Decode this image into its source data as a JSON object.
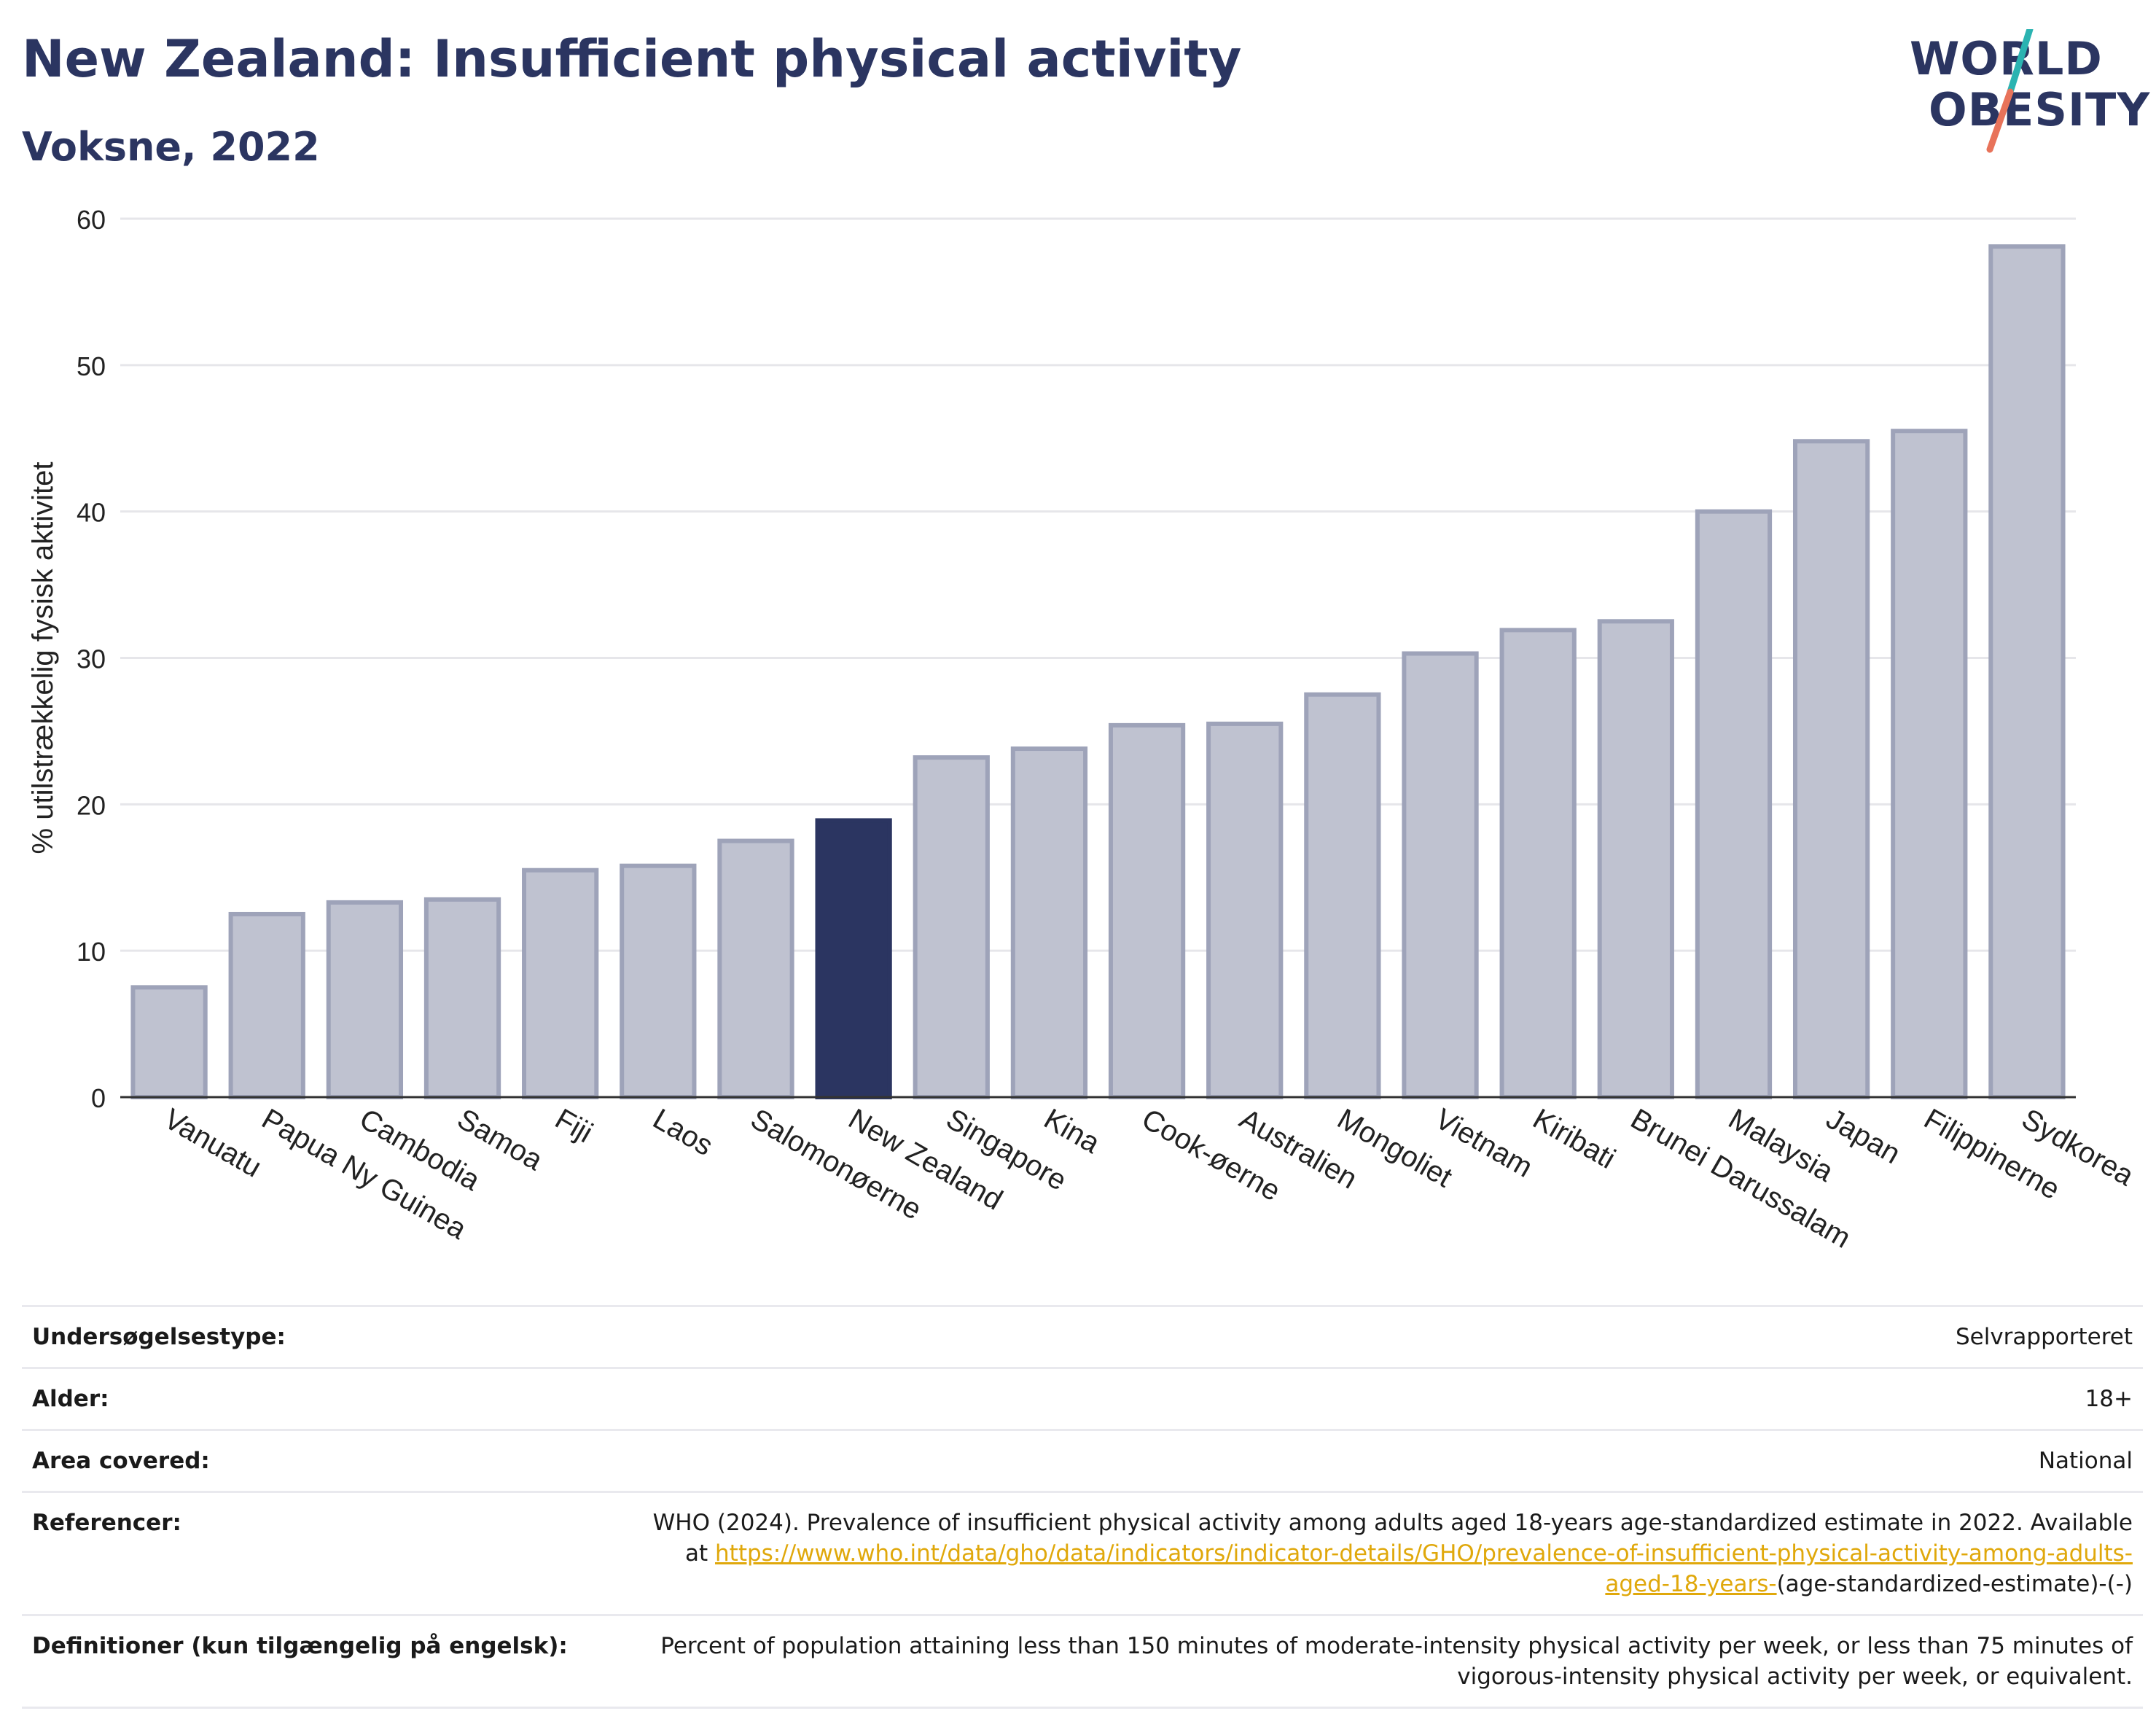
{
  "header": {
    "title": "New Zealand: Insufficient physical activity",
    "subtitle": "Voksne, 2022"
  },
  "logo": {
    "line1": "WORLD",
    "line2": "OBESITY",
    "slash_colors": [
      "#2bb3b1",
      "#e8735a"
    ]
  },
  "colors": {
    "bar": "#bfc2d0",
    "bar_stroke": "#9ea3b9",
    "highlight": "#2b3561",
    "grid": "#e6e6ea",
    "axis": "#333333"
  },
  "chart_data": {
    "type": "bar",
    "ylabel": "% utilstrækkelig fysisk aktivitet",
    "xlabel": "",
    "ylim": [
      0,
      60
    ],
    "yticks": [
      0,
      10,
      20,
      30,
      40,
      50,
      60
    ],
    "grid": true,
    "highlight": "New Zealand",
    "categories": [
      "Vanuatu",
      "Papua Ny Guinea",
      "Cambodia",
      "Samoa",
      "Fiji",
      "Laos",
      "Salomonøerne",
      "New Zealand",
      "Singapore",
      "Kina",
      "Cook-øerne",
      "Australien",
      "Mongoliet",
      "Vietnam",
      "Kiribati",
      "Brunei Darussalam",
      "Malaysia",
      "Japan",
      "Filippinerne",
      "Sydkorea"
    ],
    "values": [
      7.5,
      12.5,
      13.3,
      13.5,
      15.5,
      15.8,
      17.5,
      18.9,
      23.2,
      23.8,
      25.4,
      25.5,
      27.5,
      30.3,
      31.9,
      32.5,
      40.0,
      44.8,
      45.5,
      58.1
    ]
  },
  "info": [
    {
      "key": "Undersøgelsestype:",
      "value": "Selvrapporteret"
    },
    {
      "key": "Alder:",
      "value": "18+"
    },
    {
      "key": "Area covered:",
      "value": "National"
    },
    {
      "key": "Referencer:",
      "value_pre": "WHO (2024). Prevalence of insufficient physical activity among adults aged 18-years age-standardized estimate in 2022. Available at ",
      "link": "https://www.who.int/data/gho/data/indicators/indicator-details/GHO/prevalence-of-insufficient-physical-activity-among-adults-aged-18-years-",
      "value_post": "(age-standardized-estimate)-(-)"
    },
    {
      "key": "Definitioner (kun tilgængelig på engelsk):",
      "value": "Percent of population attaining less than 150 minutes of moderate-intensity physical activity per week, or less than 75 minutes of vigorous-intensity physical activity per week, or equivalent."
    }
  ]
}
